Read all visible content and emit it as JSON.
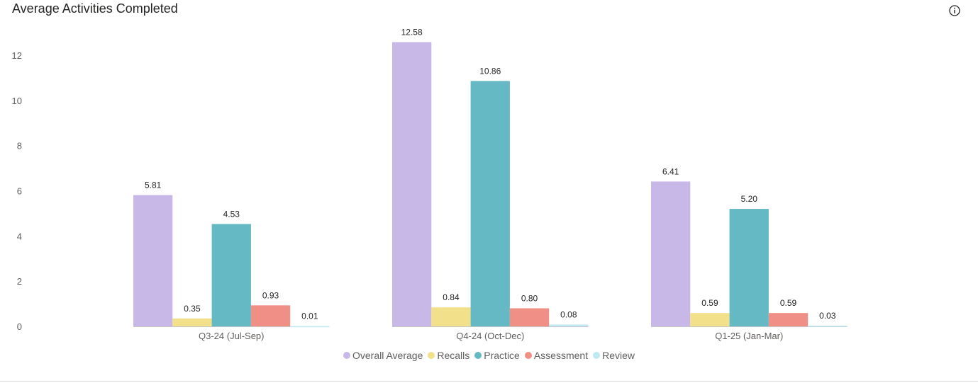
{
  "title": "Average Activities Completed",
  "info_icon": "info-icon",
  "chart_data": {
    "type": "bar",
    "title": "Average Activities Completed",
    "categories": [
      "Q3-24 (Jul-Sep)",
      "Q4-24 (Oct-Dec)",
      "Q1-25 (Jan-Mar)"
    ],
    "series": [
      {
        "name": "Overall Average",
        "color": "#c8b8e8",
        "values": [
          5.81,
          12.58,
          6.41
        ],
        "labels": [
          "5.81",
          "12.58",
          "6.41"
        ]
      },
      {
        "name": "Recalls",
        "color": "#f3e08a",
        "values": [
          0.35,
          0.84,
          0.59
        ],
        "labels": [
          "0.35",
          "0.84",
          "0.59"
        ]
      },
      {
        "name": "Practice",
        "color": "#65b9c4",
        "values": [
          4.53,
          10.86,
          5.2
        ],
        "labels": [
          "4.53",
          "10.86",
          "5.20"
        ]
      },
      {
        "name": "Assessment",
        "color": "#f08f85",
        "values": [
          0.93,
          0.8,
          0.59
        ],
        "labels": [
          "0.93",
          "0.80",
          "0.59"
        ]
      },
      {
        "name": "Review",
        "color": "#bfe8f2",
        "values": [
          0.01,
          0.08,
          0.03
        ],
        "labels": [
          "0.01",
          "0.08",
          "0.03"
        ]
      }
    ],
    "y_ticks": [
      "0",
      "2",
      "4",
      "6",
      "8",
      "10",
      "12"
    ],
    "ylim": [
      0,
      12
    ],
    "xlabel": "",
    "ylabel": "",
    "grid": false,
    "legend_position": "bottom"
  }
}
